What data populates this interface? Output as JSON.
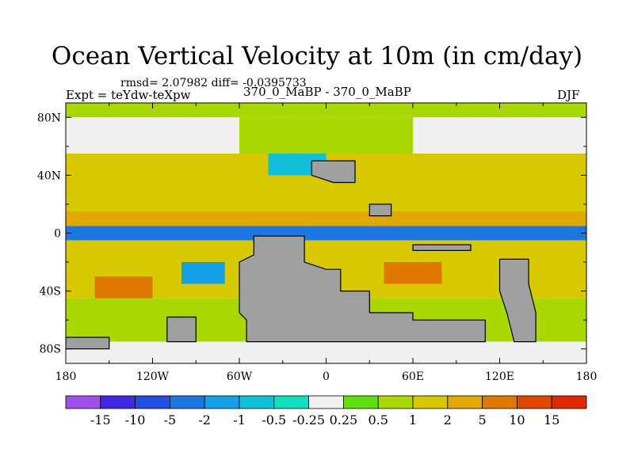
{
  "chart_data": {
    "type": "heatmap",
    "title": "Ocean Vertical Velocity at 10m (in cm/day)",
    "stats_label": "rmsd= 2.07982 diff= -0.0395733",
    "experiment_label": "Expt = teYdw-teXpw",
    "comparison_label": "370_0_MaBP - 370_0_MaBP",
    "season_label": "DJF",
    "x_ticks": [
      {
        "value": -180,
        "label": "180"
      },
      {
        "value": -120,
        "label": "120W"
      },
      {
        "value": -60,
        "label": "60W"
      },
      {
        "value": 0,
        "label": "0"
      },
      {
        "value": 60,
        "label": "60E"
      },
      {
        "value": 120,
        "label": "120E"
      },
      {
        "value": 180,
        "label": "180"
      }
    ],
    "y_ticks": [
      {
        "value": 80,
        "label": "80N"
      },
      {
        "value": 40,
        "label": "40N"
      },
      {
        "value": 0,
        "label": "0"
      },
      {
        "value": -40,
        "label": "40S"
      },
      {
        "value": -80,
        "label": "80S"
      }
    ],
    "xlim": [
      -180,
      180
    ],
    "ylim": [
      -90,
      90
    ],
    "colorbar": {
      "labels": [
        "-15",
        "-10",
        "-5",
        "-2",
        "-1",
        "-0.5",
        "-0.25",
        "0.25",
        "0.5",
        "1",
        "2",
        "5",
        "10",
        "15"
      ],
      "colors": [
        "#a050e8",
        "#4028e0",
        "#2050e0",
        "#1a78e0",
        "#14a0e8",
        "#10c0d8",
        "#10e0c0",
        "#f0f0f0",
        "#60e010",
        "#a8d800",
        "#d8c800",
        "#e0a800",
        "#e07800",
        "#e04800",
        "#e02800"
      ]
    },
    "colors": {
      "land": "#a0a0a0",
      "neutral": "#f0f0f0",
      "frame": "#000000"
    },
    "regions": [
      {
        "name": "arctic-band-1",
        "lon": [
          -180,
          180
        ],
        "lat": [
          80,
          90
        ],
        "level": "0.5"
      },
      {
        "name": "north-pacific-high-lat",
        "lon": [
          -180,
          -60
        ],
        "lat": [
          55,
          80
        ],
        "level": "0.25"
      },
      {
        "name": "north-atlantic-high-lat",
        "lon": [
          -60,
          60
        ],
        "lat": [
          55,
          80
        ],
        "level": "0.5"
      },
      {
        "name": "north-asia-ocean",
        "lon": [
          60,
          180
        ],
        "lat": [
          55,
          80
        ],
        "level": "0.25"
      },
      {
        "name": "north-subtropics",
        "lon": [
          -180,
          180
        ],
        "lat": [
          15,
          55
        ],
        "level": "1"
      },
      {
        "name": "equatorial-upwelling",
        "lon": [
          -180,
          180
        ],
        "lat": [
          -5,
          5
        ],
        "level": "-2"
      },
      {
        "name": "north-equatorial-band",
        "lon": [
          -180,
          180
        ],
        "lat": [
          5,
          15
        ],
        "level": "2"
      },
      {
        "name": "south-subtropics",
        "lon": [
          -180,
          180
        ],
        "lat": [
          -45,
          -5
        ],
        "level": "1"
      },
      {
        "name": "southern-ocean",
        "lon": [
          -180,
          180
        ],
        "lat": [
          -75,
          -45
        ],
        "level": "0.5"
      },
      {
        "name": "south-polar",
        "lon": [
          -180,
          180
        ],
        "lat": [
          -90,
          -75
        ],
        "level": "-0.25"
      },
      {
        "name": "west-pacific-anomaly",
        "lon": [
          -160,
          -120
        ],
        "lat": [
          -45,
          -30
        ],
        "level": "5"
      },
      {
        "name": "east-pacific-anomaly",
        "lon": [
          -100,
          -70
        ],
        "lat": [
          -35,
          -20
        ],
        "level": "-1"
      },
      {
        "name": "indian-ocean-anomaly",
        "lon": [
          40,
          80
        ],
        "lat": [
          -35,
          -20
        ],
        "level": "5"
      },
      {
        "name": "south-atlantic-anomaly",
        "lon": [
          -20,
          10
        ],
        "lat": [
          -40,
          -25
        ],
        "level": "2"
      },
      {
        "name": "north-atlantic-anomaly",
        "lon": [
          -40,
          0
        ],
        "lat": [
          40,
          55
        ],
        "level": "-0.5"
      }
    ],
    "land": [
      {
        "name": "gondwana-main",
        "points": [
          [
            -50,
            -2
          ],
          [
            -15,
            -2
          ],
          [
            -15,
            -20
          ],
          [
            0,
            -25
          ],
          [
            10,
            -25
          ],
          [
            10,
            -40
          ],
          [
            30,
            -40
          ],
          [
            30,
            -55
          ],
          [
            60,
            -55
          ],
          [
            60,
            -60
          ],
          [
            110,
            -60
          ],
          [
            110,
            -75
          ],
          [
            -55,
            -75
          ],
          [
            -55,
            -60
          ],
          [
            -60,
            -55
          ],
          [
            -60,
            -20
          ],
          [
            -50,
            -15
          ]
        ]
      },
      {
        "name": "australia-antarctica",
        "points": [
          [
            120,
            -18
          ],
          [
            140,
            -18
          ],
          [
            140,
            -35
          ],
          [
            145,
            -55
          ],
          [
            145,
            -75
          ],
          [
            130,
            -75
          ],
          [
            125,
            -55
          ],
          [
            120,
            -40
          ]
        ]
      },
      {
        "name": "laurasia-europe",
        "points": [
          [
            -10,
            50
          ],
          [
            20,
            50
          ],
          [
            20,
            35
          ],
          [
            5,
            35
          ],
          [
            -10,
            40
          ]
        ]
      },
      {
        "name": "south-pole-strip",
        "points": [
          [
            -180,
            -72
          ],
          [
            -150,
            -72
          ],
          [
            -150,
            -80
          ],
          [
            -180,
            -80
          ]
        ]
      },
      {
        "name": "south-pole-west",
        "points": [
          [
            -110,
            -58
          ],
          [
            -90,
            -58
          ],
          [
            -90,
            -75
          ],
          [
            -110,
            -75
          ]
        ]
      },
      {
        "name": "eastern-island",
        "points": [
          [
            60,
            -8
          ],
          [
            100,
            -8
          ],
          [
            100,
            -12
          ],
          [
            60,
            -12
          ]
        ]
      },
      {
        "name": "northeast-peninsula",
        "points": [
          [
            30,
            20
          ],
          [
            45,
            20
          ],
          [
            45,
            12
          ],
          [
            30,
            12
          ]
        ]
      }
    ]
  }
}
